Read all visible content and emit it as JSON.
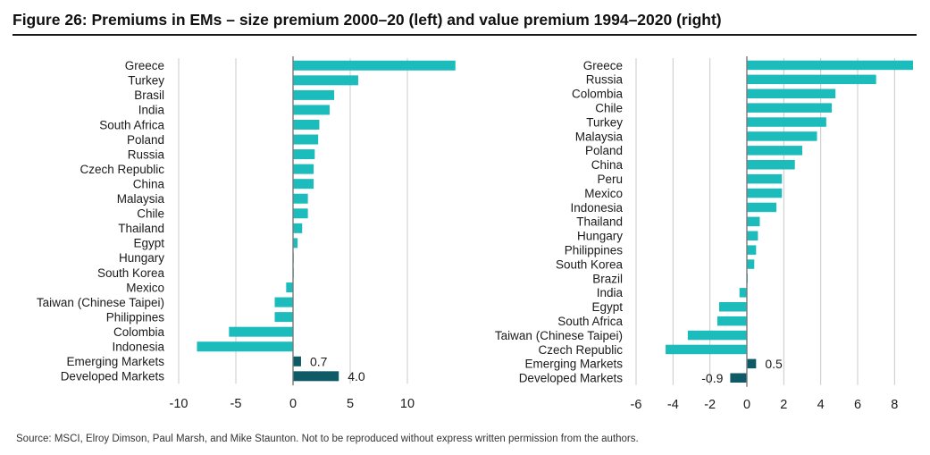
{
  "title": "Figure 26: Premiums in EMs – size premium 2000–20 (left) and value premium 1994–2020 (right)",
  "source": "Source: MSCI, Elroy Dimson, Paul Marsh, and Mike Staunton. Not to be reproduced without express written permission from the authors.",
  "colors": {
    "bar": "#1dbcbc",
    "highlight": "#0e5a66",
    "grid": "#c8c8c8",
    "axis": "#7a7a7a",
    "text": "#1a1a1a"
  },
  "chart_data": [
    {
      "type": "bar",
      "orientation": "horizontal",
      "title": "Size premium 2000–20",
      "categories": [
        "Greece",
        "Turkey",
        "Brasil",
        "India",
        "South Africa",
        "Poland",
        "Russia",
        "Czech Republic",
        "China",
        "Malaysia",
        "Chile",
        "Thailand",
        "Egypt",
        "Hungary",
        "South Korea",
        "Mexico",
        "Taiwan (Chinese Taipei)",
        "Philippines",
        "Colombia",
        "Indonesia",
        "Emerging Markets",
        "Developed Markets"
      ],
      "values": [
        14.2,
        5.7,
        3.6,
        3.2,
        2.3,
        2.2,
        1.9,
        1.8,
        1.8,
        1.3,
        1.3,
        0.8,
        0.4,
        0.05,
        0.02,
        -0.6,
        -1.6,
        -1.6,
        -5.6,
        -8.4,
        0.7,
        4.0
      ],
      "highlight": [
        false,
        false,
        false,
        false,
        false,
        false,
        false,
        false,
        false,
        false,
        false,
        false,
        false,
        false,
        false,
        false,
        false,
        false,
        false,
        false,
        true,
        true
      ],
      "data_labels": [
        "",
        "",
        "",
        "",
        "",
        "",
        "",
        "",
        "",
        "",
        "",
        "",
        "",
        "",
        "",
        "",
        "",
        "",
        "",
        "",
        "0.7",
        "4.0"
      ],
      "xlim": [
        -10,
        15
      ],
      "xticks": [
        -10,
        -5,
        0,
        5,
        10
      ],
      "xtick_labels": [
        "-10",
        "-5",
        "0",
        "5",
        "10"
      ]
    },
    {
      "type": "bar",
      "orientation": "horizontal",
      "title": "Value premium 1994–2020",
      "categories": [
        "Greece",
        "Russia",
        "Colombia",
        "Chile",
        "Turkey",
        "Malaysia",
        "Poland",
        "China",
        "Peru",
        "Mexico",
        "Indonesia",
        "Thailand",
        "Hungary",
        "Philippines",
        "South Korea",
        "Brazil",
        "India",
        "Egypt",
        "South Africa",
        "Taiwan (Chinese Taipei)",
        "Czech Republic",
        "Emerging Markets",
        "Developed Markets"
      ],
      "values": [
        9.0,
        7.0,
        4.8,
        4.6,
        4.3,
        3.8,
        3.0,
        2.6,
        1.9,
        1.9,
        1.6,
        0.7,
        0.6,
        0.5,
        0.4,
        0.05,
        -0.4,
        -1.5,
        -1.6,
        -3.2,
        -4.4,
        0.5,
        -0.9
      ],
      "highlight": [
        false,
        false,
        false,
        false,
        false,
        false,
        false,
        false,
        false,
        false,
        false,
        false,
        false,
        false,
        false,
        false,
        false,
        false,
        false,
        false,
        false,
        true,
        true
      ],
      "data_labels": [
        "",
        "",
        "",
        "",
        "",
        "",
        "",
        "",
        "",
        "",
        "",
        "",
        "",
        "",
        "",
        "",
        "",
        "",
        "",
        "",
        "",
        "0.5",
        "-0.9"
      ],
      "xlim": [
        -6,
        9
      ],
      "xticks": [
        -6,
        -4,
        -2,
        0,
        2,
        4,
        6,
        8
      ],
      "xtick_labels": [
        "-6",
        "-4",
        "-2",
        "0",
        "2",
        "4",
        "6",
        "8"
      ]
    }
  ]
}
